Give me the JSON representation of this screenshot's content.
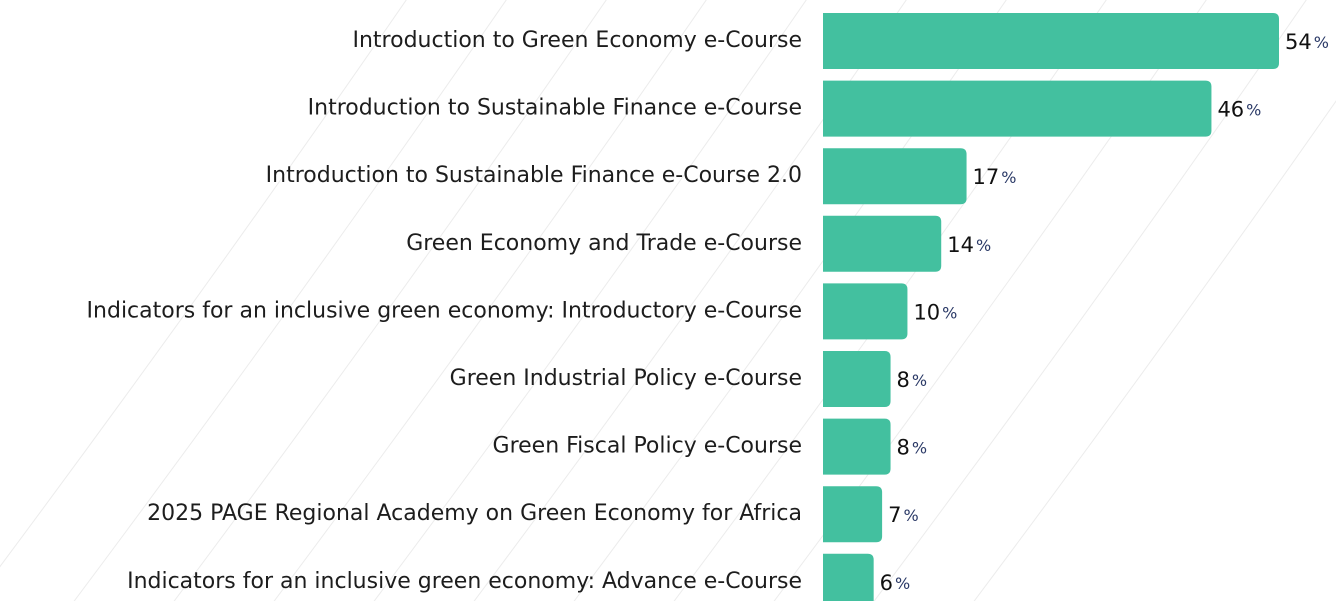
{
  "chart_data": {
    "type": "bar",
    "orientation": "horizontal",
    "categories": [
      "Introduction to Green Economy e-Course",
      "Introduction to Sustainable Finance e-Course",
      "Introduction to Sustainable Finance e-Course 2.0",
      "Green Economy and Trade e-Course",
      "Indicators for an inclusive green economy: Introductory e-Course",
      "Green Industrial Policy e-Course",
      "Green Fiscal Policy e-Course",
      "2025 PAGE Regional Academy on Green Economy for Africa",
      "Indicators for an inclusive green economy: Advance e-Course"
    ],
    "values": [
      54,
      46,
      17,
      14,
      10,
      8,
      8,
      7,
      6
    ],
    "value_unit": "%",
    "color": "#43c09f"
  }
}
